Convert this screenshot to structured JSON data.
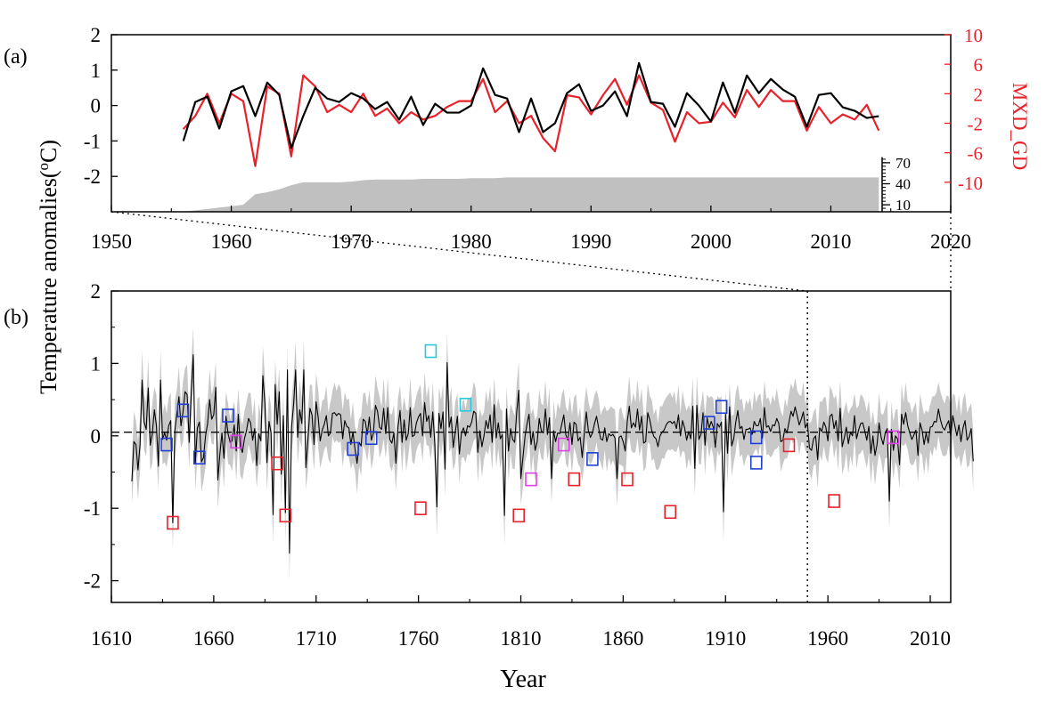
{
  "figure": {
    "panel_a_label": "(a)",
    "panel_b_label": "(b)",
    "ylabel_main": "Temperature anomalies(",
    "ylabel_sup": "o",
    "ylabel_end": "C)",
    "xlabel": "Year",
    "right_ylabel": "MXD_GD"
  },
  "colors": {
    "observed": "#000000",
    "mxd": "#e8222b",
    "sample_depth": "#c0c0c0",
    "uncertainty": "#c8c8c8",
    "box_red": "#e8222b",
    "box_blue": "#1f3fd6",
    "box_magenta": "#e040e8",
    "box_cyan": "#29c8dc"
  },
  "chart_data": [
    {
      "type": "line",
      "panel": "a",
      "xlim": [
        1950,
        2020
      ],
      "ylim_left": [
        -3,
        2
      ],
      "ylim_right": [
        -14,
        10
      ],
      "x_ticks": [
        1950,
        1960,
        1970,
        1980,
        1990,
        2000,
        2010,
        2020
      ],
      "y_ticks_left": [
        -2,
        -1,
        0,
        1,
        2
      ],
      "y_ticks_right": [
        -10,
        -6,
        -2,
        2,
        6,
        10
      ],
      "sample_ticks": [
        10,
        40,
        70
      ],
      "sample_range": [
        0,
        80
      ],
      "x": [
        1956,
        1957,
        1958,
        1959,
        1960,
        1961,
        1962,
        1963,
        1964,
        1965,
        1966,
        1967,
        1968,
        1969,
        1970,
        1971,
        1972,
        1973,
        1974,
        1975,
        1976,
        1977,
        1978,
        1979,
        1980,
        1981,
        1982,
        1983,
        1984,
        1985,
        1986,
        1987,
        1988,
        1989,
        1990,
        1991,
        1992,
        1993,
        1994,
        1995,
        1996,
        1997,
        1998,
        1999,
        2000,
        2001,
        2002,
        2003,
        2004,
        2005,
        2006,
        2007,
        2008,
        2009,
        2010,
        2011,
        2012,
        2013,
        2014
      ],
      "series": [
        {
          "name": "",
          "color_key": "observed",
          "axis": "left",
          "values": [
            -1.0,
            0.1,
            0.25,
            -0.65,
            0.4,
            0.55,
            -0.3,
            0.65,
            0.3,
            -1.2,
            -0.3,
            0.5,
            0.2,
            0.1,
            0.35,
            0.2,
            -0.1,
            0.1,
            -0.4,
            0.25,
            -0.55,
            0.05,
            -0.2,
            -0.2,
            0.0,
            1.05,
            0.3,
            0.2,
            -0.75,
            0.2,
            -0.75,
            -0.5,
            0.35,
            0.6,
            -0.15,
            0.0,
            0.4,
            -0.3,
            1.2,
            0.1,
            0.05,
            -0.6,
            0.35,
            0.0,
            -0.45,
            0.65,
            -0.2,
            0.85,
            0.35,
            0.75,
            0.45,
            0.25,
            -0.6,
            0.3,
            0.35,
            -0.05,
            -0.15,
            -0.35,
            -0.3
          ]
        },
        {
          "name": "MXD_GD",
          "color_key": "mxd",
          "axis": "right",
          "values": [
            -2.8,
            -1.0,
            2.0,
            -2.0,
            2.0,
            1.0,
            -7.8,
            3.0,
            2.0,
            -6.5,
            4.5,
            3.0,
            -0.5,
            0.5,
            -0.5,
            2.0,
            -1.0,
            0.0,
            -2.0,
            -0.5,
            -1.5,
            -1.0,
            0.2,
            1.0,
            1.0,
            4.0,
            -0.5,
            1.0,
            -2.0,
            -1.0,
            -4.0,
            -5.8,
            1.8,
            1.5,
            -0.8,
            1.8,
            4.0,
            0.5,
            4.5,
            0.8,
            -0.2,
            -4.5,
            -0.5,
            -2.0,
            -1.8,
            0.8,
            -1.2,
            2.5,
            0.2,
            2.5,
            1.0,
            1.0,
            -3.0,
            0.2,
            -2.0,
            -0.8,
            -1.5,
            0.5,
            -3.0
          ]
        },
        {
          "name": "",
          "color_key": "sample_depth",
          "axis": "sample",
          "kind": "area",
          "values": [
            0,
            2,
            4,
            6,
            8,
            10,
            25,
            28,
            32,
            38,
            42,
            42,
            42,
            42,
            43,
            45,
            46,
            46,
            46,
            46,
            47,
            47,
            47,
            47,
            48,
            48,
            48,
            49,
            49,
            49,
            49,
            49,
            49,
            49,
            49,
            49,
            49,
            49,
            49,
            49,
            49,
            49,
            49,
            49,
            49,
            49,
            49,
            49,
            49,
            49,
            49,
            49,
            49,
            49,
            49,
            49,
            49,
            49,
            49
          ]
        }
      ]
    },
    {
      "type": "line",
      "panel": "b",
      "xlim": [
        1610,
        2020
      ],
      "ylim": [
        -2.3,
        2
      ],
      "x_ticks": [
        1610,
        1660,
        1710,
        1760,
        1810,
        1860,
        1910,
        1960,
        2010
      ],
      "y_ticks": [
        -2,
        -1,
        0,
        1,
        2
      ],
      "x_start": 1620,
      "x_end": 2014,
      "reference_line": 0.05,
      "vertical_marker": 1950,
      "series": [
        {
          "name": "",
          "color_key": "observed",
          "values": [
            -0.63,
            -0.08,
            -0.12,
            -0.47,
            -0.12,
            0.77,
            0.19,
            0.09,
            0.66,
            -0.13,
            0.03,
            0.36,
            0.14,
            -0.42,
            0.77,
            -0.05,
            0.04,
            -0.06,
            0.14,
            0.21,
            -1.2,
            0.07,
            0.31,
            0.54,
            0.14,
            0.33,
            0.61,
            0.57,
            -0.09,
            0.58,
            1.12,
            -0.39,
            0.11,
            0.19,
            -0.36,
            -0.3,
            0.0,
            0.17,
            0.5,
            0.23,
            0.29,
            0.67,
            -0.61,
            -0.25,
            0.04,
            -0.31,
            0.27,
            0.03,
            -0.09,
            -0.07,
            0.15,
            -0.21,
            0.3,
            -0.15,
            -0.23,
            -0.04,
            0.07,
            0.24,
            0.18,
            -0.06,
            0.1,
            -0.41,
            0.03,
            -0.07,
            0.83,
            0.45,
            -0.37,
            0.2,
            0.04,
            -1.09,
            0.71,
            0.16,
            0.61,
            -0.53,
            0.28,
            -1.06,
            0.91,
            -1.62,
            0.12,
            0.43,
            0.91,
            -0.02,
            0.36,
            0.17,
            0.91,
            -0.44,
            -0.06,
            0.38,
            0.29,
            -0.12,
            0.47,
            0.26,
            -0.07,
            0.08,
            0.16,
            0.28,
            0.0,
            0.04,
            0.31,
            0.32,
            0.28,
            0.31,
            0.29,
            -0.04,
            0.21,
            0.13,
            0.11,
            -0.12,
            0.05,
            -0.18,
            -0.38,
            -0.09,
            -0.14,
            0.23,
            0.2,
            0.02,
            0.26,
            -0.06,
            0.04,
            0.42,
            0.34,
            0.12,
            0.09,
            0.38,
            0.03,
            0.39,
            -0.05,
            -0.1,
            0.04,
            -0.38,
            0.12,
            0.35,
            -0.09,
            0.22,
            -0.06,
            0.03,
            0.39,
            -0.01,
            0.01,
            0.18,
            0.26,
            0.31,
            0.0,
            0.46,
            0.2,
            0.28,
            -0.02,
            0.33,
            -0.12,
            -0.98,
            0.31,
            0.1,
            0.33,
            -0.46,
            1.01,
            0.12,
            0.26,
            -0.16,
            0.05,
            0.27,
            -0.25,
            0.04,
            0.11,
            0.0,
            0.14,
            0.12,
            0.19,
            0.34,
            0.31,
            -0.23,
            0.07,
            -0.15,
            0.0,
            0.21,
            0.1,
            0.29,
            -0.09,
            0.43,
            -0.03,
            0.18,
            -0.04,
            0.02,
            -1.1,
            0.37,
            -0.21,
            0.1,
            -0.05,
            -0.09,
            0.33,
            0.63,
            -0.59,
            -0.31,
            -0.02,
            0.16,
            0.3,
            -0.12,
            0.06,
            -0.2,
            -0.08,
            0.24,
            0.07,
            0.04,
            0.37,
            0.02,
            0.25,
            -0.59,
            0.07,
            -0.08,
            0.04,
            0.03,
            0.16,
            0.29,
            0.01,
            -0.06,
            0.18,
            -0.12,
            0.19,
            0.16,
            -0.07,
            -0.02,
            -0.3,
            0.03,
            0.33,
            0.07,
            -0.02,
            0.04,
            0.17,
            0.27,
            0.11,
            -0.04,
            -0.06,
            0.11,
            -0.08,
            0.03,
            0.0,
            0.02,
            -0.03,
            -0.59,
            -0.02,
            0.0,
            -0.08,
            -0.21,
            0.2,
            0.41,
            0.11,
            0.18,
            0.12,
            0.37,
            0.08,
            0.27,
            -0.1,
            -0.08,
            0.32,
            0.22,
            0.07,
            -0.01,
            -0.04,
            -0.15,
            0.0,
            0.05,
            0.08,
            0.15,
            0.19,
            0.2,
            0.17,
            0.2,
            0.1,
            0.29,
            0.0,
            0.21,
            0.11,
            -0.06,
            0.06,
            -0.04,
            0.41,
            -0.45,
            0.42,
            -0.05,
            0.02,
            0.32,
            -0.13,
            0.25,
            0.11,
            0.2,
            0.12,
            -0.16,
            0.17,
            0.12,
            0.19,
            -1.05,
            0.3,
            -0.24,
            0.4,
            -0.14,
            -0.04,
            0.19,
            0.35,
            0.1,
            0.13,
            -0.05,
            0.09,
            0.09,
            0.11,
            0.02,
            0.2,
            0.14,
            0.14,
            0.24,
            -0.03,
            0.39,
            0.12,
            0.14,
            0.06,
            0.15,
            0.14,
            0.24,
            0.17,
            -0.08,
            -0.06,
            0.1,
            0.04,
            0.19,
            0.34,
            0.27,
            0.4,
            0.28,
            0.15,
            0.23,
            0.33,
            0.11,
            0.18,
            -0.17,
            -0.2,
            -0.04,
            0.0,
            -0.33,
            0.11,
            0.06,
            0.19,
            0.12,
            -0.07,
            0.27,
            0.3,
            0.1,
            0.21,
            -0.07,
            0.38,
            -0.15,
            -0.03,
            0.12,
            -0.11,
            0.05,
            0.0,
            0.28,
            -0.04,
            0.08,
            0.17,
            0.18,
            0.07,
            -0.06,
            0.13,
            -0.24,
            0.0,
            -0.27,
            -0.12,
            0.18,
            -0.02,
            -0.12,
            0.04,
            0.1,
            -0.9,
            0.09,
            -0.2,
            0.0,
            -0.04,
            -0.4,
            0.3,
            0.16,
            0.32,
            0.14,
            0.04,
            -0.05,
            0.01,
            0.08,
            -0.27,
            0.18,
            0.08,
            -0.12,
            0.04,
            -0.1,
            0.12,
            0.13,
            0.2,
            0.19,
            0.37,
            0.22,
            0.12,
            0.08,
            0.15,
            0.21,
            0.0,
            0.28,
            0.14,
            0.0,
            0.15,
            -0.08,
            0.11,
            0.21,
            -0.06,
            -0.01,
            0.1,
            -0.35
          ]
        },
        {
          "name": "",
          "color_key": "uncertainty",
          "kind": "band",
          "halfwidth": 0.3
        }
      ],
      "markers": [
        {
          "x": 1637,
          "y": -0.12,
          "color_key": "box_blue"
        },
        {
          "x": 1640,
          "y": -1.2,
          "color_key": "box_red"
        },
        {
          "x": 1645,
          "y": 0.35,
          "color_key": "box_blue"
        },
        {
          "x": 1653,
          "y": -0.3,
          "color_key": "box_blue"
        },
        {
          "x": 1667,
          "y": 0.28,
          "color_key": "box_blue"
        },
        {
          "x": 1671,
          "y": -0.08,
          "color_key": "box_magenta"
        },
        {
          "x": 1691,
          "y": -0.38,
          "color_key": "box_red"
        },
        {
          "x": 1695,
          "y": -1.1,
          "color_key": "box_red"
        },
        {
          "x": 1728,
          "y": -0.18,
          "color_key": "box_blue"
        },
        {
          "x": 1737,
          "y": -0.03,
          "color_key": "box_blue"
        },
        {
          "x": 1761,
          "y": -1.0,
          "color_key": "box_red"
        },
        {
          "x": 1766,
          "y": 1.17,
          "color_key": "box_cyan"
        },
        {
          "x": 1783,
          "y": 0.43,
          "color_key": "box_cyan"
        },
        {
          "x": 1809,
          "y": -1.1,
          "color_key": "box_red"
        },
        {
          "x": 1815,
          "y": -0.6,
          "color_key": "box_magenta"
        },
        {
          "x": 1831,
          "y": -0.12,
          "color_key": "box_magenta"
        },
        {
          "x": 1836,
          "y": -0.6,
          "color_key": "box_red"
        },
        {
          "x": 1845,
          "y": -0.32,
          "color_key": "box_blue"
        },
        {
          "x": 1862,
          "y": -0.6,
          "color_key": "box_red"
        },
        {
          "x": 1883,
          "y": -1.05,
          "color_key": "box_red"
        },
        {
          "x": 1902,
          "y": 0.18,
          "color_key": "box_blue"
        },
        {
          "x": 1908,
          "y": 0.4,
          "color_key": "box_blue"
        },
        {
          "x": 1925,
          "y": -0.02,
          "color_key": "box_blue"
        },
        {
          "x": 1925,
          "y": -0.37,
          "color_key": "box_blue"
        },
        {
          "x": 1941,
          "y": -0.13,
          "color_key": "box_red"
        },
        {
          "x": 1963,
          "y": -0.9,
          "color_key": "box_red"
        },
        {
          "x": 1992,
          "y": -0.02,
          "color_key": "box_magenta"
        }
      ]
    }
  ]
}
